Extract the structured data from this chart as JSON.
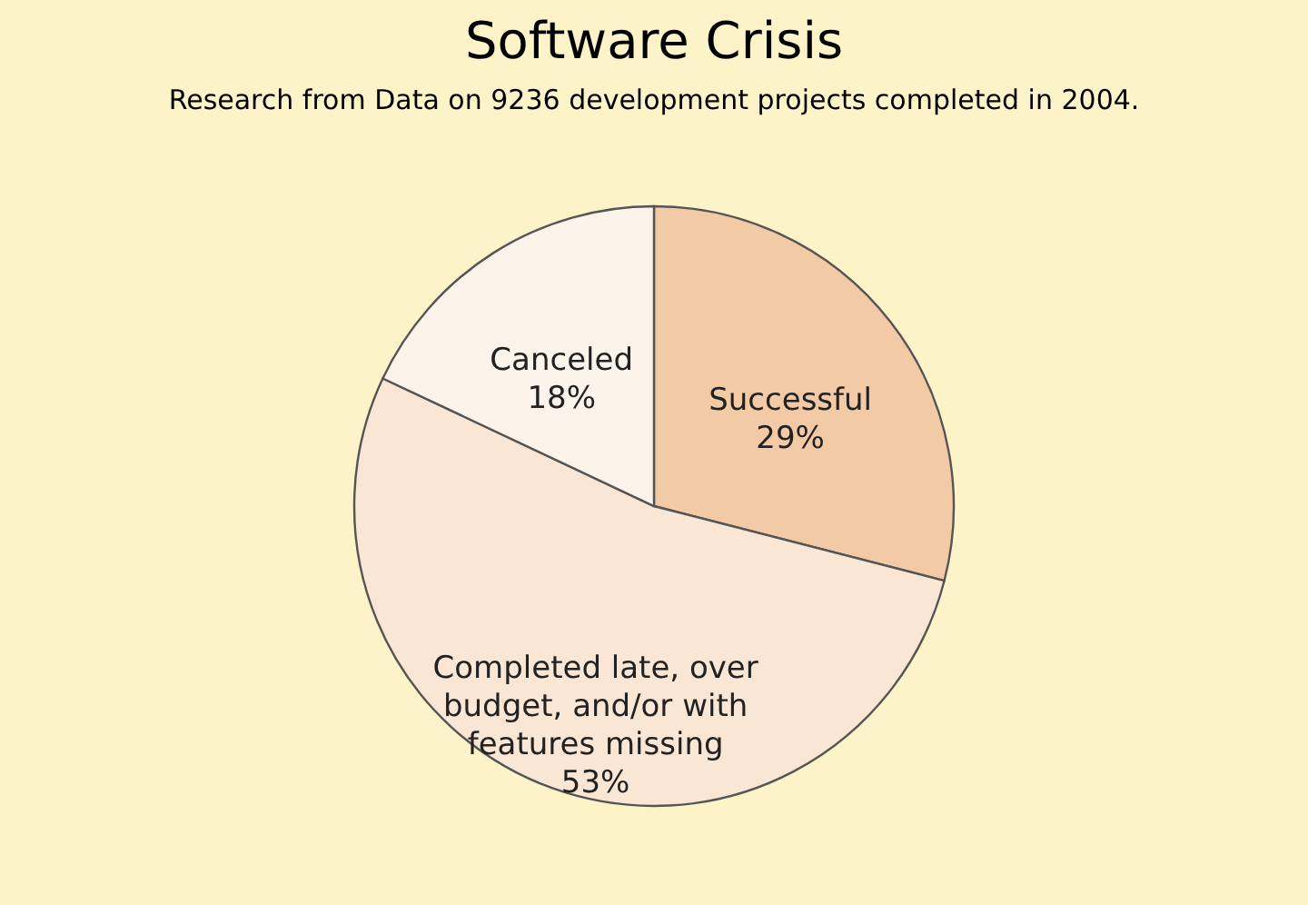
{
  "chart_data": {
    "type": "pie",
    "title": "Software Crisis",
    "subtitle": "Research from Data on 9236 development projects completed in 2004.",
    "categories": [
      "Successful",
      "Completed late, over budget, and/or with features missing",
      "Canceled"
    ],
    "values": [
      29,
      53,
      18
    ],
    "value_labels": [
      "29%",
      "53%",
      "18%"
    ],
    "colors": [
      "#f2cba6",
      "#f9e6d4",
      "#fcf3ea"
    ],
    "legend": false
  }
}
